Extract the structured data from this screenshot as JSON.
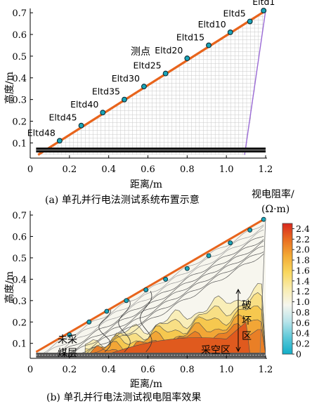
{
  "chart_data": [
    {
      "type": "scatter",
      "panel": "a",
      "caption": "(a)  单孔并行电法测试系统布置示意",
      "xlabel": "距离/m",
      "ylabel": "高度/m",
      "xlim": [
        0,
        1.2
      ],
      "ylim": [
        0.03,
        0.72
      ],
      "xticks": [
        "0",
        "0.2",
        "0.4",
        "0.6",
        "0.8",
        "1.0",
        "1.2"
      ],
      "yticks": [
        "0.1",
        "0.2",
        "0.3",
        "0.4",
        "0.5",
        "0.6",
        "0.7"
      ],
      "grid": true,
      "annotation": "测点",
      "line_color": "#e8641c",
      "marker_color": "#1aa5b8",
      "electrodes": [
        {
          "x": 0.15,
          "y": 0.11
        },
        {
          "x": 0.26,
          "y": 0.18
        },
        {
          "x": 0.37,
          "y": 0.24
        },
        {
          "x": 0.48,
          "y": 0.3
        },
        {
          "x": 0.58,
          "y": 0.36
        },
        {
          "x": 0.69,
          "y": 0.42
        },
        {
          "x": 0.8,
          "y": 0.49
        },
        {
          "x": 0.91,
          "y": 0.55
        },
        {
          "x": 1.02,
          "y": 0.61
        },
        {
          "x": 1.12,
          "y": 0.66
        },
        {
          "x": 1.19,
          "y": 0.71
        }
      ],
      "electrode_labels": [
        {
          "label": "Eltd48",
          "at": 0
        },
        {
          "label": "Eltd45",
          "at": 1
        },
        {
          "label": "Eltd40",
          "at": 2
        },
        {
          "label": "Eltd35",
          "at": 3
        },
        {
          "label": "Eltd30",
          "at": 4
        },
        {
          "label": "Eltd25",
          "at": 5
        },
        {
          "label": "Eltd20",
          "at": 6
        },
        {
          "label": "Eltd15",
          "at": 7
        },
        {
          "label": "Eltd10",
          "at": 8
        },
        {
          "label": "Eltd5",
          "at": 9
        },
        {
          "label": "Eltd1",
          "at": 10
        }
      ]
    },
    {
      "type": "heatmap",
      "panel": "b",
      "caption": "(b)  单孔并行电法测试视电阻率效果",
      "xlabel": "距离/m",
      "ylabel": "高度/m",
      "xlim": [
        0,
        1.2
      ],
      "ylim": [
        0.03,
        0.72
      ],
      "xticks": [
        "0",
        "0.2",
        "0.4",
        "0.6",
        "0.8",
        "1.0",
        "1.2"
      ],
      "yticks": [
        "0.1",
        "0.2",
        "0.3",
        "0.4",
        "0.5",
        "0.6",
        "0.7"
      ],
      "colorbar_title": [
        "视电阻率/",
        "(Ω·m)"
      ],
      "colorbar_ticks": [
        "2.4",
        "2.2",
        "2.0",
        "1.8",
        "1.6",
        "1.4",
        "1.2",
        "1.0",
        "0.8",
        "0.6",
        "0.4",
        "0.2",
        "0"
      ],
      "colorbar_range": [
        0,
        2.5
      ],
      "colorbar_colors": [
        "#11aec8",
        "#5cc8d8",
        "#b9e4ea",
        "#f6f6ee",
        "#f9ecaf",
        "#f9d75e",
        "#f3ab35",
        "#e96e20",
        "#d8281e"
      ],
      "annotations": [
        "未采",
        "煤层",
        "破",
        "坏",
        "区",
        "采空区"
      ],
      "electrodes": [
        {
          "x": 0.2,
          "y": 0.14
        },
        {
          "x": 0.3,
          "y": 0.2
        },
        {
          "x": 0.39,
          "y": 0.25
        },
        {
          "x": 0.49,
          "y": 0.3
        },
        {
          "x": 0.59,
          "y": 0.35
        },
        {
          "x": 0.69,
          "y": 0.4
        },
        {
          "x": 0.8,
          "y": 0.45
        },
        {
          "x": 0.91,
          "y": 0.51
        },
        {
          "x": 1.02,
          "y": 0.57
        },
        {
          "x": 1.12,
          "y": 0.63
        },
        {
          "x": 1.19,
          "y": 0.68
        }
      ]
    }
  ]
}
